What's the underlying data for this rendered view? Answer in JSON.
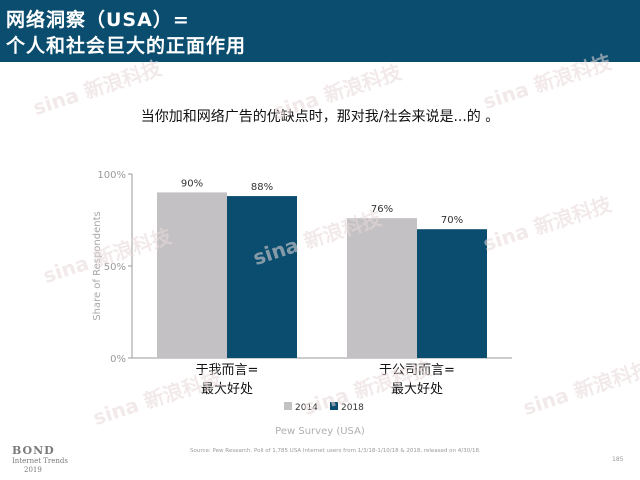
{
  "header": {
    "title_line1": "网络洞察（USA）=",
    "title_line2": "个人和社会巨大的正面作用"
  },
  "question": "当你加和网络广告的优缺点时，那对我/社会来说是...的 。",
  "chart_data": {
    "type": "bar",
    "categories": [
      {
        "line1": "于我而言=",
        "line2": "最大好处"
      },
      {
        "line1": "于公司而言=",
        "line2": "最大好处"
      }
    ],
    "series": [
      {
        "name": "2014",
        "values": [
          90,
          76
        ],
        "labels": [
          "90%",
          "76%"
        ],
        "color": "#c3c1c4"
      },
      {
        "name": "2018",
        "values": [
          88,
          70
        ],
        "labels": [
          "88%",
          "70%"
        ],
        "color": "#0b4d6e"
      }
    ],
    "ylabel": "Share of Respondents",
    "xlabel": "Pew Survey (USA)",
    "ylim": [
      0,
      100
    ],
    "yticks": [
      0,
      50,
      100
    ],
    "ytick_labels": [
      "0%",
      "50%",
      "100%"
    ],
    "grid": false,
    "legend": "bottom"
  },
  "watermark_text": "新浪科技",
  "watermark_brand": "sina",
  "footer": {
    "brand_line1": "BOND",
    "brand_line2": "Internet Trends",
    "brand_line3": "2019",
    "source": "Source: Pew Research.  Poll of 1,785 USA Internet users from 1/3/18-1/10/18 & 2018, released on 4/30/18.",
    "page": "185"
  }
}
